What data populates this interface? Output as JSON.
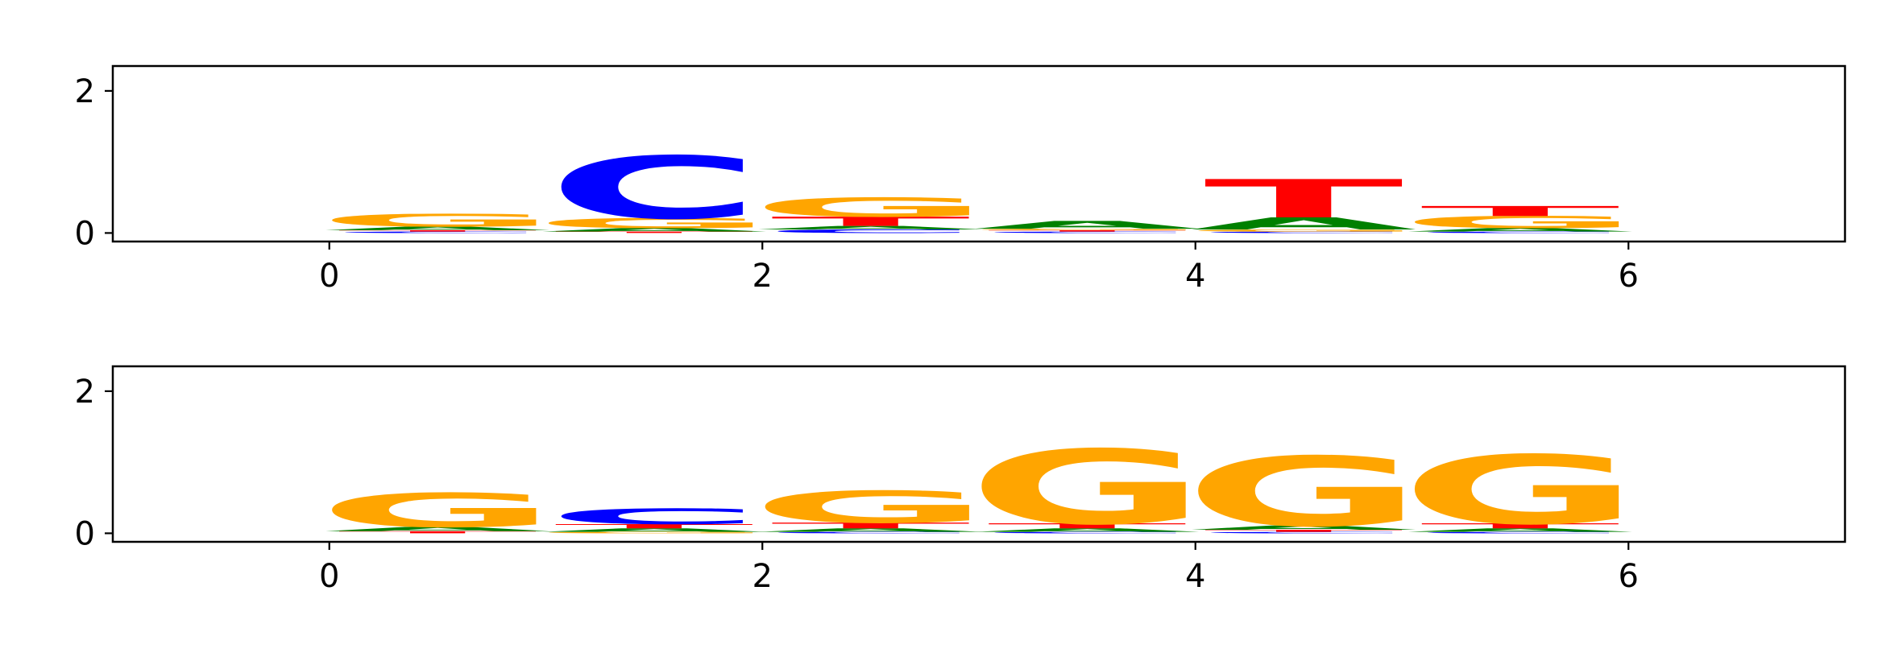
{
  "colors": {
    "A": "#008000",
    "C": "#0000ff",
    "G": "#ffa500",
    "T": "#ff0000"
  },
  "chart_data": [
    {
      "type": "sequence-logo",
      "title": "",
      "xlabel": "",
      "ylabel": "",
      "xlim": [
        -1,
        7
      ],
      "ylim": [
        -0.12,
        2.35
      ],
      "xticks": [
        0,
        2,
        4,
        6
      ],
      "yticks": [
        0,
        2
      ],
      "positions": [
        {
          "x": 0,
          "stack": [
            {
              "base": "C",
              "height": 0.02
            },
            {
              "base": "T",
              "height": 0.02
            },
            {
              "base": "A",
              "height": 0.05
            },
            {
              "base": "G",
              "height": 0.18
            }
          ]
        },
        {
          "x": 1,
          "stack": [
            {
              "base": "T",
              "height": 0.02
            },
            {
              "base": "A",
              "height": 0.05
            },
            {
              "base": "G",
              "height": 0.14
            },
            {
              "base": "C",
              "height": 0.88
            }
          ]
        },
        {
          "x": 2,
          "stack": [
            {
              "base": "C",
              "height": 0.05
            },
            {
              "base": "A",
              "height": 0.05
            },
            {
              "base": "T",
              "height": 0.13
            },
            {
              "base": "G",
              "height": 0.27
            }
          ]
        },
        {
          "x": 3,
          "stack": [
            {
              "base": "C",
              "height": 0.02
            },
            {
              "base": "T",
              "height": 0.02
            },
            {
              "base": "G",
              "height": 0.02
            },
            {
              "base": "A",
              "height": 0.11
            }
          ]
        },
        {
          "x": 4,
          "stack": [
            {
              "base": "C",
              "height": 0.02
            },
            {
              "base": "G",
              "height": 0.03
            },
            {
              "base": "A",
              "height": 0.17
            },
            {
              "base": "T",
              "height": 0.54
            }
          ]
        },
        {
          "x": 5,
          "stack": [
            {
              "base": "C",
              "height": 0.02
            },
            {
              "base": "A",
              "height": 0.05
            },
            {
              "base": "G",
              "height": 0.17
            },
            {
              "base": "T",
              "height": 0.14
            }
          ]
        }
      ]
    },
    {
      "type": "sequence-logo",
      "title": "",
      "xlabel": "",
      "ylabel": "",
      "xlim": [
        -1,
        7
      ],
      "ylim": [
        -0.12,
        2.35
      ],
      "xticks": [
        0,
        2,
        4,
        6
      ],
      "yticks": [
        0,
        2
      ],
      "positions": [
        {
          "x": 0,
          "stack": [
            {
              "base": "T",
              "height": 0.03
            },
            {
              "base": "A",
              "height": 0.06
            },
            {
              "base": "G",
              "height": 0.48
            }
          ]
        },
        {
          "x": 1,
          "stack": [
            {
              "base": "G",
              "height": 0.02
            },
            {
              "base": "A",
              "height": 0.05
            },
            {
              "base": "T",
              "height": 0.06
            },
            {
              "base": "C",
              "height": 0.22
            }
          ]
        },
        {
          "x": 2,
          "stack": [
            {
              "base": "C",
              "height": 0.02
            },
            {
              "base": "A",
              "height": 0.05
            },
            {
              "base": "T",
              "height": 0.08
            },
            {
              "base": "G",
              "height": 0.45
            }
          ]
        },
        {
          "x": 3,
          "stack": [
            {
              "base": "C",
              "height": 0.02
            },
            {
              "base": "A",
              "height": 0.05
            },
            {
              "base": "T",
              "height": 0.07
            },
            {
              "base": "G",
              "height": 1.05
            }
          ]
        },
        {
          "x": 4,
          "stack": [
            {
              "base": "C",
              "height": 0.02
            },
            {
              "base": "T",
              "height": 0.03
            },
            {
              "base": "A",
              "height": 0.06
            },
            {
              "base": "G",
              "height": 0.98
            }
          ]
        },
        {
          "x": 5,
          "stack": [
            {
              "base": "C",
              "height": 0.02
            },
            {
              "base": "A",
              "height": 0.05
            },
            {
              "base": "T",
              "height": 0.07
            },
            {
              "base": "G",
              "height": 0.97
            }
          ]
        }
      ]
    }
  ]
}
